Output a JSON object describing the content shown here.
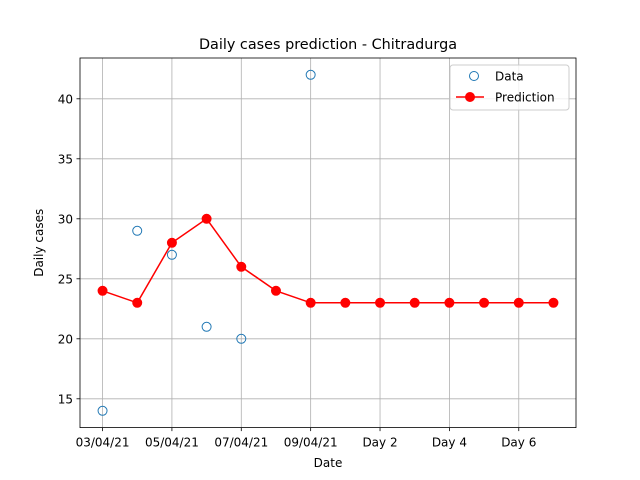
{
  "chart_data": {
    "type": "line",
    "title": "Daily cases prediction - Chitradurga",
    "xlabel": "Date",
    "ylabel": "Daily cases",
    "x_index": [
      0,
      1,
      2,
      3,
      4,
      5,
      6,
      7,
      8,
      9,
      10,
      11,
      12,
      13
    ],
    "xticks": [
      {
        "pos": 0,
        "label": "03/04/21"
      },
      {
        "pos": 2,
        "label": "05/04/21"
      },
      {
        "pos": 4,
        "label": "07/04/21"
      },
      {
        "pos": 6,
        "label": "09/04/21"
      },
      {
        "pos": 8,
        "label": "Day 2"
      },
      {
        "pos": 10,
        "label": "Day 4"
      },
      {
        "pos": 12,
        "label": "Day 6"
      }
    ],
    "xlim": [
      -0.65,
      13.65
    ],
    "yticks": [
      15,
      20,
      25,
      30,
      35,
      40
    ],
    "ylim": [
      12.6,
      43.4
    ],
    "grid": true,
    "legend": "top-right",
    "series": [
      {
        "name": "Data",
        "style": "markers-hollow",
        "color": "#1f77b4",
        "points": [
          [
            0,
            14
          ],
          [
            1,
            29
          ],
          [
            2,
            27
          ],
          [
            3,
            21
          ],
          [
            4,
            20
          ],
          [
            6,
            42
          ]
        ]
      },
      {
        "name": "Prediction",
        "style": "line-markers",
        "color": "#ff0000",
        "points": [
          [
            0,
            24
          ],
          [
            1,
            23
          ],
          [
            2,
            28
          ],
          [
            3,
            30
          ],
          [
            4,
            26
          ],
          [
            5,
            24
          ],
          [
            6,
            23
          ],
          [
            7,
            23
          ],
          [
            8,
            23
          ],
          [
            9,
            23
          ],
          [
            10,
            23
          ],
          [
            11,
            23
          ],
          [
            12,
            23
          ],
          [
            13,
            23
          ]
        ]
      }
    ]
  }
}
